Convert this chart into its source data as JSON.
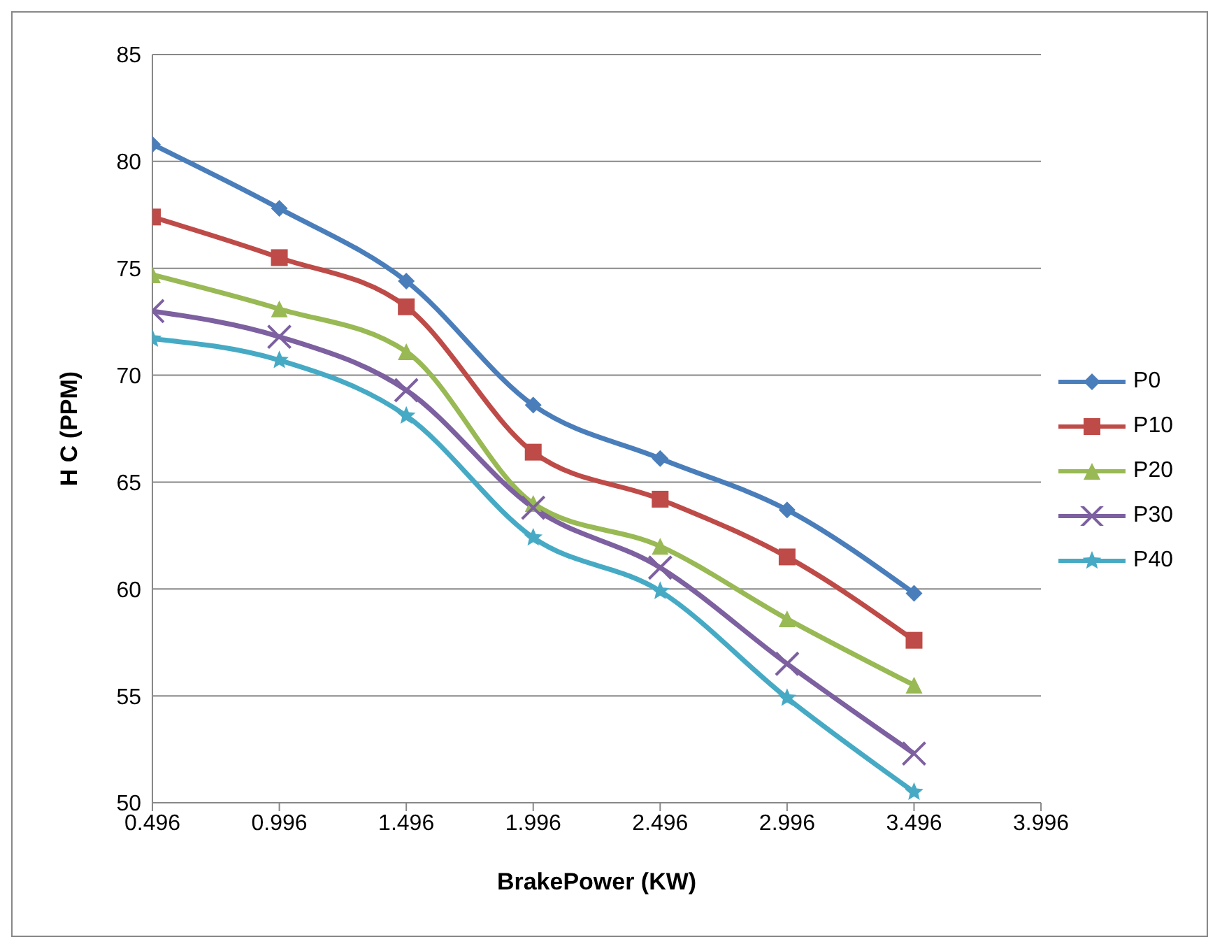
{
  "chart_data": {
    "type": "line",
    "xlabel": "BrakePower (KW)",
    "ylabel": "H C (PPM)",
    "x": [
      0.496,
      0.996,
      1.496,
      1.996,
      2.496,
      2.996,
      3.496
    ],
    "xlim": [
      0.496,
      3.996
    ],
    "xticks": [
      0.496,
      0.996,
      1.496,
      1.996,
      2.496,
      2.996,
      3.496,
      3.996
    ],
    "ylim": [
      50,
      85
    ],
    "yticks": [
      50,
      55,
      60,
      65,
      70,
      75,
      80,
      85
    ],
    "grid": "y",
    "legend": "right",
    "line_style": "solid",
    "series": [
      {
        "name": "P0",
        "color": "#4a7ebb",
        "marker": "diamond",
        "values": [
          80.8,
          77.8,
          74.4,
          68.6,
          66.1,
          63.7,
          59.8
        ]
      },
      {
        "name": "P10",
        "color": "#be4b48",
        "marker": "square",
        "values": [
          77.4,
          75.5,
          73.2,
          66.4,
          64.2,
          61.5,
          57.6
        ]
      },
      {
        "name": "P20",
        "color": "#98b954",
        "marker": "triangle",
        "values": [
          74.7,
          73.1,
          71.1,
          64.0,
          62.0,
          58.6,
          55.5
        ]
      },
      {
        "name": "P30",
        "color": "#7d60a0",
        "marker": "cross",
        "values": [
          73.0,
          71.8,
          69.3,
          63.8,
          61.0,
          56.5,
          52.3
        ]
      },
      {
        "name": "P40",
        "color": "#46aac5",
        "marker": "star",
        "values": [
          71.7,
          70.7,
          68.1,
          62.4,
          59.9,
          54.9,
          50.5
        ]
      }
    ]
  }
}
